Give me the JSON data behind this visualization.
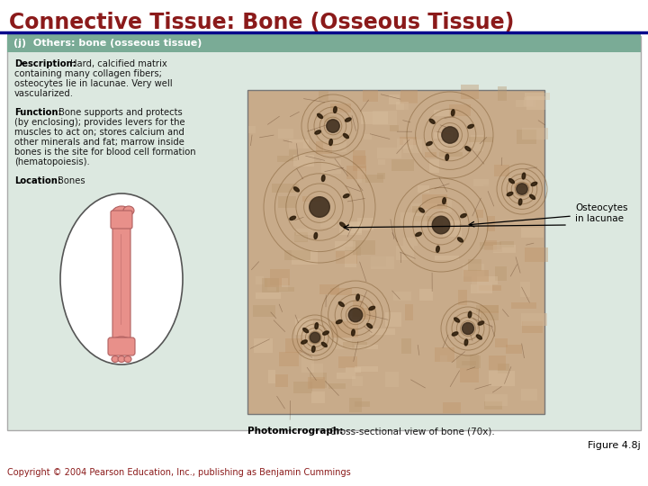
{
  "title": "Connective Tissue: Bone (Osseous Tissue)",
  "title_color": "#8B1A1A",
  "title_fontsize": 17,
  "header_text": "(j)  Others: bone (osseous tissue)",
  "header_bg": "#7aab96",
  "header_text_color": "#ffffff",
  "panel_bg": "#dce8e0",
  "outer_bg": "#ffffff",
  "separator_line_color": "#00008B",
  "description_bold": "Description:",
  "description_text": "Hard, calcified matrix\ncontaining many collagen fibers;\nosteocytes lie in lacunae. Very well\nvascularized.",
  "function_bold": "Function:",
  "function_text": "Bone supports and protects\n(by enclosing); provides levers for the\nmuscles to act on; stores calcium and\nother minerals and fat; marrow inside\nbones is the site for blood cell formation\n(hematopoiesis).",
  "location_bold": "Location:",
  "location_text": "Bones",
  "annotation_label": "Osteocytes\nin lacunae",
  "photomicrograph_bold": "Photomicrograph:",
  "photomicrograph_text": " Cross-sectional view of bone (70x).",
  "figure_label": "Figure 4.8j",
  "copyright_text": "Copyright © 2004 Pearson Education, Inc., publishing as Benjamin Cummings",
  "copyright_color": "#8B1A1A",
  "text_color": "#1a1a1a",
  "bold_color": "#000000",
  "image_bg": "#c8ab8a",
  "bone_color": "#e8908a",
  "bone_edge": "#b06060"
}
